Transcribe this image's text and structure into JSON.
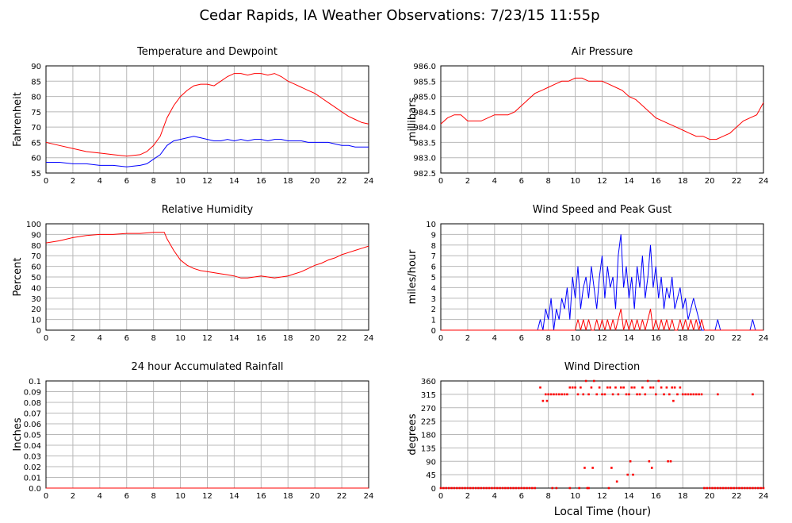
{
  "title": "Cedar Rapids, IA Weather Observations: 7/23/15 11:55p",
  "x_axis_label": "Local Time (hour)",
  "colors": {
    "red": "#ff0000",
    "blue": "#0000ff",
    "grid": "#b8b8b8"
  },
  "chart_data": [
    {
      "id": "temp",
      "type": "line",
      "title": "Temperature and Dewpoint",
      "ylabel": "Fahrenheit",
      "xlim": [
        0,
        24
      ],
      "ylim": [
        55,
        90
      ],
      "xticks": [
        "0",
        "2",
        "4",
        "6",
        "8",
        "10",
        "12",
        "14",
        "16",
        "18",
        "20",
        "22",
        "24"
      ],
      "yticks": [
        "55",
        "60",
        "65",
        "70",
        "75",
        "80",
        "85",
        "90"
      ],
      "series": [
        {
          "color": "#ff0000",
          "x": [
            0,
            1,
            2,
            3,
            4,
            5,
            6,
            7,
            7.5,
            8,
            8.5,
            9,
            9.5,
            10,
            10.5,
            11,
            11.5,
            12,
            12.5,
            13,
            13.5,
            14,
            14.5,
            15,
            15.5,
            16,
            16.5,
            17,
            17.5,
            18,
            18.5,
            19,
            19.5,
            20,
            20.5,
            21,
            21.5,
            22,
            22.5,
            23,
            23.5,
            24
          ],
          "y": [
            65,
            64,
            63,
            62,
            61.5,
            61,
            60.5,
            61,
            62,
            64,
            67,
            73,
            77,
            80,
            82,
            83.5,
            84,
            84,
            83.5,
            85,
            86.5,
            87.5,
            87.5,
            87,
            87.5,
            87.5,
            87,
            87.5,
            86.5,
            85,
            84,
            83,
            82,
            81,
            79.5,
            78,
            76.5,
            75,
            73.5,
            72.5,
            71.5,
            71
          ]
        },
        {
          "color": "#0000ff",
          "x": [
            0,
            1,
            2,
            3,
            4,
            5,
            6,
            7,
            7.5,
            8,
            8.5,
            9,
            9.5,
            10,
            10.5,
            11,
            11.5,
            12,
            12.5,
            13,
            13.5,
            14,
            14.5,
            15,
            15.5,
            16,
            16.5,
            17,
            17.5,
            18,
            18.5,
            19,
            19.5,
            20,
            20.5,
            21,
            21.5,
            22,
            22.5,
            23,
            23.5,
            24
          ],
          "y": [
            58.5,
            58.5,
            58,
            58,
            57.5,
            57.5,
            57,
            57.5,
            58,
            59.5,
            61,
            64,
            65.5,
            66,
            66.5,
            67,
            66.5,
            66,
            65.5,
            65.5,
            66,
            65.5,
            66,
            65.5,
            66,
            66,
            65.5,
            66,
            66,
            65.5,
            65.5,
            65.5,
            65,
            65,
            65,
            65,
            64.5,
            64,
            64,
            63.5,
            63.5,
            63.5
          ]
        }
      ]
    },
    {
      "id": "pressure",
      "type": "line",
      "title": "Air Pressure",
      "ylabel": "millibars",
      "xlim": [
        0,
        24
      ],
      "ylim": [
        982.5,
        986.0
      ],
      "xticks": [
        "0",
        "2",
        "4",
        "6",
        "8",
        "10",
        "12",
        "14",
        "16",
        "18",
        "20",
        "22",
        "24"
      ],
      "yticks": [
        "982.5",
        "983.0",
        "983.5",
        "984.0",
        "984.5",
        "985.0",
        "985.5",
        "986.0"
      ],
      "series": [
        {
          "color": "#ff0000",
          "x": [
            0,
            0.5,
            1,
            1.5,
            2,
            2.5,
            3,
            3.5,
            4,
            4.5,
            5,
            5.5,
            6,
            6.5,
            7,
            7.5,
            8,
            8.5,
            9,
            9.5,
            10,
            10.5,
            11,
            11.5,
            12,
            12.5,
            13,
            13.5,
            14,
            14.5,
            15,
            15.5,
            16,
            16.5,
            17,
            17.5,
            18,
            18.5,
            19,
            19.5,
            20,
            20.5,
            21,
            21.5,
            22,
            22.5,
            23,
            23.5,
            24
          ],
          "y": [
            984.1,
            984.3,
            984.4,
            984.4,
            984.2,
            984.2,
            984.2,
            984.3,
            984.4,
            984.4,
            984.4,
            984.5,
            984.7,
            984.9,
            985.1,
            985.2,
            985.3,
            985.4,
            985.5,
            985.5,
            985.6,
            985.6,
            985.5,
            985.5,
            985.5,
            985.4,
            985.3,
            985.2,
            985.0,
            984.9,
            984.7,
            984.5,
            984.3,
            984.2,
            984.1,
            984.0,
            983.9,
            983.8,
            983.7,
            983.7,
            983.6,
            983.6,
            983.7,
            983.8,
            984.0,
            984.2,
            984.3,
            984.4,
            984.8
          ]
        }
      ]
    },
    {
      "id": "humidity",
      "type": "line",
      "title": "Relative Humidity",
      "ylabel": "Percent",
      "xlim": [
        0,
        24
      ],
      "ylim": [
        0,
        100
      ],
      "xticks": [
        "0",
        "2",
        "4",
        "6",
        "8",
        "10",
        "12",
        "14",
        "16",
        "18",
        "20",
        "22",
        "24"
      ],
      "yticks": [
        "0",
        "10",
        "20",
        "30",
        "40",
        "50",
        "60",
        "70",
        "80",
        "90",
        "100"
      ],
      "series": [
        {
          "color": "#ff0000",
          "x": [
            0,
            1,
            2,
            3,
            4,
            5,
            6,
            7,
            8,
            8.8,
            9,
            9.5,
            10,
            10.5,
            11,
            11.5,
            12,
            12.5,
            13,
            13.5,
            14,
            14.5,
            15,
            15.5,
            16,
            16.5,
            17,
            17.5,
            18,
            18.5,
            19,
            19.5,
            20,
            20.5,
            21,
            21.5,
            22,
            22.5,
            23,
            23.5,
            24
          ],
          "y": [
            82,
            84,
            87,
            89,
            90,
            90,
            91,
            91,
            92,
            92,
            86,
            75,
            66,
            61,
            58,
            56,
            55,
            54,
            53,
            52,
            51,
            49,
            49,
            50,
            51,
            50,
            49,
            50,
            51,
            53,
            55,
            58,
            61,
            63,
            66,
            68,
            71,
            73,
            75,
            77,
            79
          ]
        }
      ]
    },
    {
      "id": "wind",
      "type": "line",
      "title": "Wind Speed and Peak Gust",
      "ylabel": "miles/hour",
      "xlim": [
        0,
        24
      ],
      "ylim": [
        0,
        10
      ],
      "xticks": [
        "0",
        "2",
        "4",
        "6",
        "8",
        "10",
        "12",
        "14",
        "16",
        "18",
        "20",
        "22",
        "24"
      ],
      "yticks": [
        "0",
        "1",
        "2",
        "3",
        "4",
        "5",
        "6",
        "7",
        "8",
        "9",
        "10"
      ],
      "series": [
        {
          "color": "#0000ff",
          "x": [
            0,
            7.2,
            7.4,
            7.6,
            7.8,
            8.0,
            8.2,
            8.4,
            8.6,
            8.8,
            9.0,
            9.2,
            9.4,
            9.6,
            9.8,
            10.0,
            10.2,
            10.4,
            10.6,
            10.8,
            11.0,
            11.2,
            11.4,
            11.6,
            11.8,
            12.0,
            12.2,
            12.4,
            12.6,
            12.8,
            13.0,
            13.2,
            13.4,
            13.6,
            13.8,
            14.0,
            14.2,
            14.4,
            14.6,
            14.8,
            15.0,
            15.2,
            15.4,
            15.6,
            15.8,
            16.0,
            16.2,
            16.4,
            16.6,
            16.8,
            17.0,
            17.2,
            17.4,
            17.6,
            17.8,
            18.0,
            18.2,
            18.4,
            18.6,
            18.8,
            19.0,
            19.2,
            19.4,
            19.6,
            20.0,
            20.4,
            20.6,
            20.8,
            21.0,
            23.0,
            23.2,
            23.4,
            24
          ],
          "y": [
            0,
            0,
            1,
            0,
            2,
            1,
            3,
            0,
            2,
            1,
            3,
            2,
            4,
            1,
            5,
            3,
            6,
            2,
            4,
            5,
            3,
            6,
            4,
            2,
            5,
            7,
            3,
            6,
            4,
            5,
            2,
            7,
            9,
            4,
            6,
            3,
            5,
            2,
            6,
            4,
            7,
            3,
            5,
            8,
            4,
            6,
            3,
            5,
            2,
            4,
            3,
            5,
            2,
            3,
            4,
            2,
            3,
            1,
            2,
            3,
            2,
            1,
            0,
            0,
            0,
            0,
            1,
            0,
            0,
            0,
            1,
            0,
            0
          ]
        },
        {
          "color": "#ff0000",
          "x": [
            0,
            10.0,
            10.2,
            10.4,
            10.6,
            10.8,
            11.0,
            11.2,
            11.4,
            11.6,
            11.8,
            12.0,
            12.2,
            12.4,
            12.6,
            12.8,
            13.0,
            13.2,
            13.4,
            13.6,
            13.8,
            14.0,
            14.2,
            14.4,
            14.6,
            14.8,
            15.0,
            15.2,
            15.4,
            15.6,
            15.8,
            16.0,
            16.2,
            16.4,
            16.6,
            16.8,
            17.0,
            17.2,
            17.4,
            17.6,
            17.8,
            18.0,
            18.2,
            18.4,
            18.6,
            18.8,
            19.0,
            19.2,
            19.4,
            19.6,
            24
          ],
          "y": [
            0,
            0,
            1,
            0,
            1,
            0,
            1,
            0,
            0,
            1,
            0,
            1,
            0,
            1,
            0,
            1,
            0,
            1,
            2,
            0,
            1,
            0,
            1,
            0,
            1,
            0,
            1,
            0,
            1,
            2,
            0,
            1,
            0,
            1,
            0,
            1,
            0,
            1,
            0,
            0,
            1,
            0,
            1,
            0,
            1,
            0,
            1,
            0,
            1,
            0,
            0
          ]
        }
      ]
    },
    {
      "id": "rain",
      "type": "line",
      "title": "24 hour Accumulated Rainfall",
      "ylabel": "Inches",
      "xlim": [
        0,
        24
      ],
      "ylim": [
        0,
        0.1
      ],
      "xticks": [
        "0",
        "2",
        "4",
        "6",
        "8",
        "10",
        "12",
        "14",
        "16",
        "18",
        "20",
        "22",
        "24"
      ],
      "yticks": [
        "0.0",
        "0.01",
        "0.02",
        "0.03",
        "0.04",
        "0.05",
        "0.06",
        "0.07",
        "0.08",
        "0.09",
        "0.1"
      ],
      "series": [
        {
          "color": "#ff0000",
          "x": [
            0,
            24
          ],
          "y": [
            0,
            0
          ]
        }
      ]
    },
    {
      "id": "direction",
      "type": "scatter",
      "title": "Wind Direction",
      "ylabel": "degrees",
      "xlim": [
        0,
        24
      ],
      "ylim": [
        0,
        360
      ],
      "xticks": [
        "0",
        "2",
        "4",
        "6",
        "8",
        "10",
        "12",
        "14",
        "16",
        "18",
        "20",
        "22",
        "24"
      ],
      "yticks": [
        "0",
        "45",
        "90",
        "135",
        "180",
        "225",
        "270",
        "315",
        "360"
      ],
      "series": [
        {
          "color": "#ff0000",
          "x": [
            0,
            0.2,
            0.4,
            0.6,
            0.8,
            1.0,
            1.2,
            1.4,
            1.6,
            1.8,
            2.0,
            2.2,
            2.4,
            2.6,
            2.8,
            3.0,
            3.2,
            3.4,
            3.6,
            3.8,
            4.0,
            4.2,
            4.4,
            4.6,
            4.8,
            5.0,
            5.2,
            5.4,
            5.6,
            5.8,
            6.0,
            6.2,
            6.4,
            6.6,
            6.8,
            7.0,
            7.4,
            7.6,
            7.8,
            7.9,
            8.0,
            8.2,
            8.4,
            8.6,
            8.8,
            9.0,
            9.2,
            9.4,
            9.6,
            9.8,
            10.0,
            10.2,
            10.4,
            10.6,
            10.8,
            11.0,
            11.2,
            11.4,
            11.6,
            11.8,
            12.0,
            12.2,
            12.4,
            12.6,
            12.8,
            13.0,
            13.2,
            13.4,
            13.6,
            13.8,
            14.0,
            14.2,
            14.4,
            14.6,
            14.8,
            15.0,
            15.2,
            15.4,
            15.6,
            15.8,
            16.0,
            16.2,
            16.4,
            16.6,
            16.8,
            17.0,
            17.2,
            17.4,
            17.6,
            17.8,
            18.0,
            18.2,
            18.4,
            18.6,
            18.8,
            19.0,
            19.2,
            19.4,
            10.7,
            11.3,
            12.7,
            13.1,
            13.9,
            14.1,
            15.5,
            15.7,
            16.9,
            17.1,
            8.3,
            8.6,
            10.9,
            19.6,
            19.8,
            20.0,
            20.2,
            20.4,
            20.6,
            20.8,
            21.0,
            21.2,
            21.4,
            21.6,
            21.8,
            22.0,
            22.2,
            22.4,
            22.6,
            22.8,
            23.0,
            23.2,
            23.4,
            23.6,
            23.8,
            24.0,
            20.6,
            23.2,
            14.3,
            17.3,
            9.6,
            10.3,
            11.0,
            12.5
          ],
          "y": [
            0,
            0,
            0,
            0,
            0,
            0,
            0,
            0,
            0,
            0,
            0,
            0,
            0,
            0,
            0,
            0,
            0,
            0,
            0,
            0,
            0,
            0,
            0,
            0,
            0,
            0,
            0,
            0,
            0,
            0,
            0,
            0,
            0,
            0,
            0,
            0,
            338,
            293,
            315,
            293,
            315,
            315,
            315,
            315,
            315,
            315,
            315,
            315,
            338,
            338,
            338,
            315,
            338,
            315,
            360,
            315,
            338,
            360,
            315,
            338,
            315,
            315,
            338,
            338,
            315,
            338,
            315,
            338,
            338,
            315,
            315,
            338,
            338,
            315,
            315,
            338,
            315,
            360,
            338,
            338,
            315,
            360,
            338,
            315,
            338,
            315,
            338,
            338,
            315,
            338,
            315,
            315,
            315,
            315,
            315,
            315,
            315,
            315,
            68,
            68,
            68,
            22,
            45,
            90,
            90,
            68,
            90,
            90,
            0,
            0,
            0,
            0,
            0,
            0,
            0,
            0,
            0,
            0,
            0,
            0,
            0,
            0,
            0,
            0,
            0,
            0,
            0,
            0,
            0,
            0,
            0,
            0,
            0,
            0,
            315,
            315,
            45,
            293,
            0,
            0,
            0,
            0
          ]
        }
      ]
    }
  ]
}
